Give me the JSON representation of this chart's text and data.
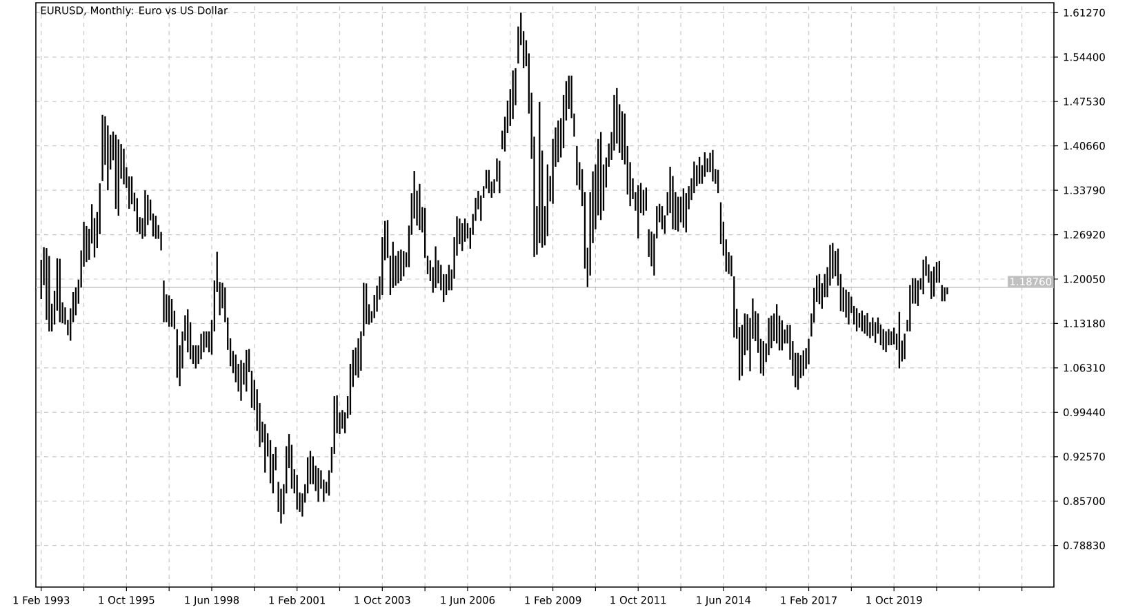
{
  "chart_data": {
    "type": "bar",
    "title": "EURUSD, Monthly:  Euro vs US Dollar",
    "color": "#000000",
    "x": [
      "1993-02",
      "1993-03",
      "1993-04",
      "1993-05",
      "1993-06",
      "1993-07",
      "1993-08",
      "1993-09",
      "1993-10",
      "1993-11",
      "1993-12",
      "1994-01",
      "1994-02",
      "1994-03",
      "1994-04",
      "1994-05",
      "1994-06",
      "1994-07",
      "1994-08",
      "1994-09",
      "1994-10",
      "1994-11",
      "1994-12",
      "1995-01",
      "1995-02",
      "1995-03",
      "1995-04",
      "1995-05",
      "1995-06",
      "1995-07",
      "1995-08",
      "1995-09",
      "1995-10",
      "1995-11",
      "1995-12",
      "1996-01",
      "1996-02",
      "1996-03",
      "1996-04",
      "1996-05",
      "1996-06",
      "1996-07",
      "1996-08",
      "1996-09",
      "1996-10",
      "1996-11",
      "1996-12",
      "1997-01",
      "1997-02",
      "1997-03",
      "1997-04",
      "1997-05",
      "1997-06",
      "1997-07",
      "1997-08",
      "1997-09",
      "1997-10",
      "1997-11",
      "1997-12",
      "1998-01",
      "1998-02",
      "1998-03",
      "1998-04",
      "1998-05",
      "1998-06",
      "1998-07",
      "1998-08",
      "1998-09",
      "1998-10",
      "1998-11",
      "1998-12",
      "1999-01",
      "1999-02",
      "1999-03",
      "1999-04",
      "1999-05",
      "1999-06",
      "1999-07",
      "1999-08",
      "1999-09",
      "1999-10",
      "1999-11",
      "1999-12",
      "2000-01",
      "2000-02",
      "2000-03",
      "2000-04",
      "2000-05",
      "2000-06",
      "2000-07",
      "2000-08",
      "2000-09",
      "2000-10",
      "2000-11",
      "2000-12",
      "2001-01",
      "2001-02",
      "2001-03",
      "2001-04",
      "2001-05",
      "2001-06",
      "2001-07",
      "2001-08",
      "2001-09",
      "2001-10",
      "2001-11",
      "2001-12",
      "2002-01",
      "2002-02",
      "2002-03",
      "2002-04",
      "2002-05",
      "2002-06",
      "2002-07",
      "2002-08",
      "2002-09",
      "2002-10",
      "2002-11",
      "2002-12",
      "2003-01",
      "2003-02",
      "2003-03",
      "2003-04",
      "2003-05",
      "2003-06",
      "2003-07",
      "2003-08",
      "2003-09",
      "2003-10",
      "2003-11",
      "2003-12",
      "2004-01",
      "2004-02",
      "2004-03",
      "2004-04",
      "2004-05",
      "2004-06",
      "2004-07",
      "2004-08",
      "2004-09",
      "2004-10",
      "2004-11",
      "2004-12",
      "2005-01",
      "2005-02",
      "2005-03",
      "2005-04",
      "2005-05",
      "2005-06",
      "2005-07",
      "2005-08",
      "2005-09",
      "2005-10",
      "2005-11",
      "2005-12",
      "2006-01",
      "2006-02",
      "2006-03",
      "2006-04",
      "2006-05",
      "2006-06",
      "2006-07",
      "2006-08",
      "2006-09",
      "2006-10",
      "2006-11",
      "2006-12",
      "2007-01",
      "2007-02",
      "2007-03",
      "2007-04",
      "2007-05",
      "2007-06",
      "2007-07",
      "2007-08",
      "2007-09",
      "2007-10",
      "2007-11",
      "2007-12",
      "2008-01",
      "2008-02",
      "2008-03",
      "2008-04",
      "2008-05",
      "2008-06",
      "2008-07",
      "2008-08",
      "2008-09",
      "2008-10",
      "2008-11",
      "2008-12",
      "2009-01",
      "2009-02",
      "2009-03",
      "2009-04",
      "2009-05",
      "2009-06",
      "2009-07",
      "2009-08",
      "2009-09",
      "2009-10",
      "2009-11",
      "2009-12",
      "2010-01",
      "2010-02",
      "2010-03",
      "2010-04",
      "2010-05",
      "2010-06",
      "2010-07",
      "2010-08",
      "2010-09",
      "2010-10",
      "2010-11",
      "2010-12",
      "2011-01",
      "2011-02",
      "2011-03",
      "2011-04",
      "2011-05",
      "2011-06",
      "2011-07",
      "2011-08",
      "2011-09",
      "2011-10",
      "2011-11",
      "2011-12",
      "2012-01",
      "2012-02",
      "2012-03",
      "2012-04",
      "2012-05",
      "2012-06",
      "2012-07",
      "2012-08",
      "2012-09",
      "2012-10",
      "2012-11",
      "2012-12",
      "2013-01",
      "2013-02",
      "2013-03",
      "2013-04",
      "2013-05",
      "2013-06",
      "2013-07",
      "2013-08",
      "2013-09",
      "2013-10",
      "2013-11",
      "2013-12",
      "2014-01",
      "2014-02",
      "2014-03",
      "2014-04",
      "2014-05",
      "2014-06",
      "2014-07",
      "2014-08",
      "2014-09",
      "2014-10",
      "2014-11",
      "2014-12",
      "2015-01",
      "2015-02",
      "2015-03",
      "2015-04",
      "2015-05",
      "2015-06",
      "2015-07",
      "2015-08",
      "2015-09",
      "2015-10",
      "2015-11",
      "2015-12",
      "2016-01",
      "2016-02",
      "2016-03",
      "2016-04",
      "2016-05",
      "2016-06",
      "2016-07",
      "2016-08",
      "2016-09",
      "2016-10",
      "2016-11",
      "2016-12",
      "2017-01",
      "2017-02",
      "2017-03",
      "2017-04",
      "2017-05",
      "2017-06",
      "2017-07",
      "2017-08",
      "2017-09",
      "2017-10",
      "2017-11",
      "2017-12",
      "2018-01",
      "2018-02",
      "2018-03",
      "2018-04",
      "2018-05",
      "2018-06",
      "2018-07",
      "2018-08",
      "2018-09",
      "2018-10",
      "2018-11",
      "2018-12",
      "2019-01",
      "2019-02",
      "2019-03",
      "2019-04",
      "2019-05",
      "2019-06",
      "2019-07",
      "2019-08",
      "2019-09",
      "2019-10",
      "2019-11",
      "2019-12",
      "2020-01",
      "2020-02",
      "2020-03",
      "2020-04",
      "2020-05",
      "2020-06",
      "2020-07",
      "2020-08",
      "2020-09",
      "2020-10",
      "2020-11",
      "2020-12",
      "2021-01",
      "2021-02",
      "2021-03",
      "2021-04",
      "2021-05",
      "2021-06"
    ],
    "base": [
      1.1696,
      1.191,
      1.1374,
      1.1194,
      1.1194,
      1.1302,
      1.1517,
      1.1338,
      1.1323,
      1.1302,
      1.1137,
      1.1051,
      1.1338,
      1.1445,
      1.1624,
      1.1875,
      1.2197,
      1.2269,
      1.2304,
      1.2555,
      1.234,
      1.2484,
      1.2699,
      1.3521,
      1.3772,
      1.3378,
      1.37,
      1.3844,
      1.3092,
      1.2985,
      1.3557,
      1.3471,
      1.3414,
      1.3092,
      1.3164,
      1.3056,
      1.2734,
      1.2699,
      1.2627,
      1.2663,
      1.2841,
      1.2913,
      1.2663,
      1.2627,
      1.2627,
      1.2448,
      1.1338,
      1.1338,
      1.1266,
      1.1266,
      1.123,
      1.0478,
      1.035,
      1.0622,
      1.1051,
      1.0872,
      1.0765,
      1.0693,
      1.0622,
      1.0693,
      1.0765,
      1.0873,
      1.0945,
      1.0873,
      1.0837,
      1.1195,
      1.1804,
      1.1446,
      1.1553,
      1.1338,
      1.0909,
      1.0658,
      1.0551,
      1.0408,
      1.0264,
      1.0121,
      1.0372,
      1.0264,
      1.0565,
      1.0014,
      0.9978,
      0.9656,
      0.9405,
      0.9477,
      0.9011,
      0.9262,
      0.8846,
      0.8689,
      0.9047,
      0.8403,
      0.8224,
      0.8367,
      0.8689,
      0.9083,
      0.8761,
      0.8689,
      0.8439,
      0.8403,
      0.8331,
      0.8546,
      0.8689,
      0.8832,
      0.8832,
      0.8725,
      0.856,
      0.8761,
      0.856,
      0.8689,
      0.8654,
      0.9011,
      0.9298,
      0.962,
      0.9606,
      0.9691,
      0.962,
      0.9849,
      0.9907,
      1.0336,
      1.0516,
      1.048,
      1.0587,
      1.1124,
      1.131,
      1.13,
      1.133,
      1.14,
      1.15,
      1.1688,
      1.176,
      1.2296,
      1.2332,
      1.176,
      1.1867,
      1.1903,
      1.1938,
      1.1974,
      1.2046,
      1.2189,
      1.2189,
      1.269,
      1.2941,
      1.2833,
      1.2761,
      1.2726,
      1.2332,
      1.2081,
      1.1974,
      1.1795,
      1.1867,
      1.1938,
      1.1831,
      1.1652,
      1.176,
      1.1831,
      1.1831,
      1.201,
      1.2368,
      1.2547,
      1.244,
      1.2583,
      1.2633,
      1.2475,
      1.269,
      1.2905,
      1.3084,
      1.2905,
      1.3263,
      1.3406,
      1.3335,
      1.3263,
      1.3335,
      1.3514,
      1.3335,
      1.4015,
      1.3979,
      1.4265,
      1.4373,
      1.448,
      1.4695,
      1.5339,
      1.5626,
      1.5268,
      1.5297,
      1.4566,
      1.3864,
      1.2347,
      1.2382,
      1.2561,
      1.249,
      1.2526,
      1.2669,
      1.3206,
      1.317,
      1.3743,
      1.3814,
      1.3886,
      1.4029,
      1.4459,
      1.4638,
      1.4495,
      1.4208,
      1.3456,
      1.3385,
      1.3134,
      1.2168,
      1.1881,
      1.206,
      1.2561,
      1.2776,
      1.2991,
      1.2919,
      1.3063,
      1.3421,
      1.3743,
      1.385,
      1.3993,
      1.4101,
      1.3958,
      1.385,
      1.3779,
      1.3313,
      1.3134,
      1.3242,
      1.3063,
      1.2633,
      1.3027,
      1.2991,
      1.3063,
      1.2347,
      1.2203,
      1.206,
      1.2633,
      1.2884,
      1.2776,
      1.2705,
      1.2991,
      1.3027,
      1.2776,
      1.2762,
      1.274,
      1.2884,
      1.2799,
      1.2727,
      1.3085,
      1.3229,
      1.3336,
      1.3443,
      1.3479,
      1.3479,
      1.3587,
      1.3658,
      1.3658,
      1.3515,
      1.3479,
      1.3336,
      1.2548,
      1.2369,
      1.2119,
      1.2083,
      1.2047,
      1.1102,
      1.1081,
      1.0436,
      1.0508,
      1.083,
      1.0902,
      1.0579,
      1.1081,
      1.1045,
      1.0866,
      1.0544,
      1.0508,
      1.0723,
      1.083,
      1.0937,
      1.1045,
      1.1009,
      1.0902,
      1.0902,
      1.1009,
      1.1009,
      1.0758,
      1.0508,
      1.0329,
      1.0293,
      1.0472,
      1.0508,
      1.0615,
      1.0687,
      1.1116,
      1.1331,
      1.1653,
      1.1618,
      1.1546,
      1.1725,
      1.1725,
      1.1904,
      1.2011,
      1.2047,
      1.1904,
      1.151,
      1.1497,
      1.1411,
      1.1303,
      1.1482,
      1.1303,
      1.1196,
      1.1253,
      1.1196,
      1.116,
      1.1124,
      1.1088,
      1.1124,
      1.1017,
      1.116,
      1.0981,
      1.0909,
      1.0874,
      1.0981,
      1.0981,
      1.0995,
      1.0909,
      1.0623,
      1.073,
      1.0766,
      1.1196,
      1.1196,
      1.1625,
      1.1625,
      1.159,
      1.184,
      1.1769,
      1.2055,
      1.1948,
      1.1697,
      1.1733,
      1.1948,
      1.1948,
      1.1661,
      1.1661,
      1.1769
    ],
    "values": [
      0.0608,
      0.0588,
      0.111,
      0.1168,
      0.043,
      0.0523,
      0.0809,
      0.0981,
      0.0323,
      0.0265,
      0.0237,
      0.0502,
      0.0465,
      0.043,
      0.0373,
      0.0573,
      0.0694,
      0.0558,
      0.048,
      0.0609,
      0.0609,
      0.0558,
      0.0787,
      0.1024,
      0.0752,
      0.1003,
      0.0537,
      0.0444,
      0.1145,
      0.1181,
      0.0537,
      0.0552,
      0.0322,
      0.0501,
      0.0429,
      0.0286,
      0.0523,
      0.0264,
      0.0322,
      0.0715,
      0.0466,
      0.0322,
      0.0357,
      0.0358,
      0.0214,
      0.0286,
      0.0644,
      0.043,
      0.0487,
      0.043,
      0.0287,
      0.0752,
      0.063,
      0.0572,
      0.0394,
      0.0666,
      0.0573,
      0.0287,
      0.0358,
      0.0287,
      0.0393,
      0.0322,
      0.025,
      0.0322,
      0.0537,
      0.0788,
      0.0623,
      0.0515,
      0.0394,
      0.0537,
      0.0501,
      0.043,
      0.0343,
      0.0429,
      0.043,
      0.063,
      0.0336,
      0.0645,
      0.0358,
      0.0573,
      0.0466,
      0.0644,
      0.0681,
      0.0323,
      0.0752,
      0.0358,
      0.0667,
      0.0609,
      0.0358,
      0.0465,
      0.0537,
      0.0465,
      0.0731,
      0.0523,
      0.068,
      0.0373,
      0.0537,
      0.0301,
      0.0358,
      0.0286,
      0.0559,
      0.0516,
      0.043,
      0.0394,
      0.0523,
      0.0286,
      0.0344,
      0.0179,
      0.0393,
      0.0394,
      0.0895,
      0.0587,
      0.0337,
      0.0287,
      0.0323,
      0.0344,
      0.0787,
      0.0573,
      0.0429,
      0.0608,
      0.0608,
      0.0823,
      0.0628,
      0.0316,
      0.0179,
      0.036,
      0.0403,
      0.0358,
      0.0894,
      0.0609,
      0.0587,
      0.0608,
      0.0716,
      0.0465,
      0.0502,
      0.0487,
      0.0394,
      0.0229,
      0.0644,
      0.0645,
      0.0737,
      0.0538,
      0.0717,
      0.0394,
      0.0773,
      0.0287,
      0.0322,
      0.0394,
      0.0644,
      0.0358,
      0.0394,
      0.0429,
      0.0321,
      0.0394,
      0.0322,
      0.0644,
      0.0608,
      0.0394,
      0.0429,
      0.0358,
      0.0236,
      0.0323,
      0.0322,
      0.0358,
      0.0287,
      0.0394,
      0.0179,
      0.0287,
      0.0358,
      0.0251,
      0.0214,
      0.0358,
      0.0501,
      0.0286,
      0.0537,
      0.0501,
      0.0572,
      0.0752,
      0.0573,
      0.0573,
      0.0501,
      0.0573,
      0.0403,
      0.0931,
      0.1024,
      0.1861,
      0.0752,
      0.2184,
      0.1503,
      0.0608,
      0.111,
      0.0394,
      0.1002,
      0.0608,
      0.0645,
      0.0609,
      0.0824,
      0.0608,
      0.0515,
      0.0658,
      0.0358,
      0.0609,
      0.0429,
      0.0573,
      0.1181,
      0.0609,
      0.1289,
      0.111,
      0.1003,
      0.1181,
      0.1361,
      0.0716,
      0.0465,
      0.0358,
      0.043,
      0.086,
      0.0859,
      0.0751,
      0.0752,
      0.0787,
      0.0752,
      0.068,
      0.0322,
      0.0286,
      0.0824,
      0.0465,
      0.0394,
      0.0358,
      0.0429,
      0.0537,
      0.0645,
      0.0501,
      0.0286,
      0.0358,
      0.0286,
      0.0358,
      0.0716,
      0.0824,
      0.0587,
      0.0538,
      0.0394,
      0.0609,
      0.0609,
      0.0358,
      0.0336,
      0.0487,
      0.0323,
      0.0415,
      0.0287,
      0.0379,
      0.0215,
      0.0301,
      0.0487,
      0.0229,
      0.0358,
      0.0645,
      0.0523,
      0.0501,
      0.0337,
      0.0322,
      0.0945,
      0.0465,
      0.0824,
      0.0787,
      0.0644,
      0.0558,
      0.0824,
      0.0623,
      0.0465,
      0.0608,
      0.0537,
      0.0537,
      0.0286,
      0.0573,
      0.0502,
      0.0429,
      0.0609,
      0.0537,
      0.0465,
      0.0215,
      0.0286,
      0.0537,
      0.0537,
      0.0537,
      0.0573,
      0.0358,
      0.0394,
      0.0322,
      0.0394,
      0.0358,
      0.0537,
      0.0409,
      0.0465,
      0.0394,
      0.0358,
      0.0465,
      0.063,
      0.0552,
      0.0394,
      0.0573,
      0.0573,
      0.0379,
      0.0429,
      0.0501,
      0.0251,
      0.0287,
      0.0358,
      0.0229,
      0.0322,
      0.0286,
      0.0358,
      0.0251,
      0.0287,
      0.0322,
      0.0251,
      0.0322,
      0.0323,
      0.0322,
      0.0251,
      0.0215,
      0.0258,
      0.0251,
      0.0874,
      0.0323,
      0.0394,
      0.0179,
      0.0716,
      0.0394,
      0.0394,
      0.0394,
      0.0179,
      0.0537,
      0.0301,
      0.0286,
      0.043,
      0.0465,
      0.0322,
      0.0336,
      0.0251,
      0.0215,
      0.0107
    ],
    "xlim": [
      "1992-12",
      "2024-10"
    ],
    "xticks": [
      {
        "value": "1993-02",
        "label": "1 Feb 1993"
      },
      {
        "value": "1994-06",
        "label": null
      },
      {
        "value": "1995-10",
        "label": "1 Oct 1995"
      },
      {
        "value": "1997-02",
        "label": null
      },
      {
        "value": "1998-06",
        "label": "1 Jun 1998"
      },
      {
        "value": "1999-10",
        "label": null
      },
      {
        "value": "2001-02",
        "label": "1 Feb 2001"
      },
      {
        "value": "2002-06",
        "label": null
      },
      {
        "value": "2003-10",
        "label": "1 Oct 2003"
      },
      {
        "value": "2005-02",
        "label": null
      },
      {
        "value": "2006-06",
        "label": "1 Jun 2006"
      },
      {
        "value": "2007-10",
        "label": null
      },
      {
        "value": "2009-02",
        "label": "1 Feb 2009"
      },
      {
        "value": "2010-06",
        "label": null
      },
      {
        "value": "2011-10",
        "label": "1 Oct 2011"
      },
      {
        "value": "2013-02",
        "label": null
      },
      {
        "value": "2014-06",
        "label": "1 Jun 2014"
      },
      {
        "value": "2015-10",
        "label": null
      },
      {
        "value": "2017-02",
        "label": "1 Feb 2017"
      },
      {
        "value": "2018-06",
        "label": null
      },
      {
        "value": "2019-10",
        "label": "1 Oct 2019"
      },
      {
        "value": "2021-02",
        "label": null
      },
      {
        "value": "2022-06",
        "label": null
      },
      {
        "value": "2023-10",
        "label": null
      }
    ],
    "ylim": [
      0.724,
      1.628
    ],
    "yticks": [
      {
        "value": 0.7883,
        "label": "0.78830"
      },
      {
        "value": 0.857,
        "label": "0.85700"
      },
      {
        "value": 0.9257,
        "label": "0.92570"
      },
      {
        "value": 0.9944,
        "label": "0.99440"
      },
      {
        "value": 1.0631,
        "label": "1.06310"
      },
      {
        "value": 1.1318,
        "label": "1.13180"
      },
      {
        "value": 1.2005,
        "label": "1.20050"
      },
      {
        "value": 1.2692,
        "label": "1.26920"
      },
      {
        "value": 1.3379,
        "label": "1.33790"
      },
      {
        "value": 1.4066,
        "label": "1.40660"
      },
      {
        "value": 1.4753,
        "label": "1.47530"
      },
      {
        "value": 1.544,
        "label": "1.54400"
      },
      {
        "value": 1.6127,
        "label": "1.61270"
      }
    ],
    "ref_lines": [
      {
        "axis": "y",
        "value": 1.1876,
        "label": "1.18760",
        "color": "#c0c0c0"
      }
    ],
    "grid": true
  }
}
